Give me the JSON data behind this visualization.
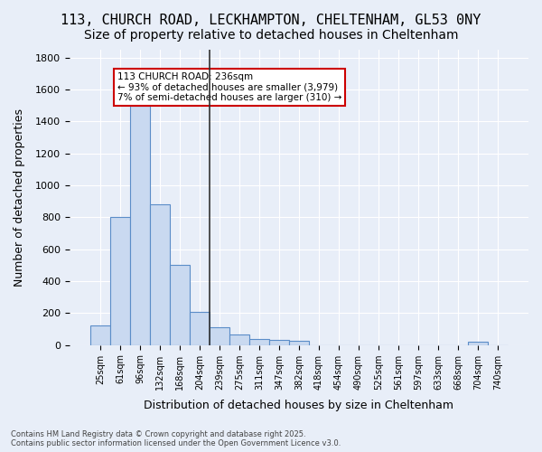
{
  "title_line1": "113, CHURCH ROAD, LECKHAMPTON, CHELTENHAM, GL53 0NY",
  "title_line2": "Size of property relative to detached houses in Cheltenham",
  "xlabel": "Distribution of detached houses by size in Cheltenham",
  "ylabel": "Number of detached properties",
  "footer_line1": "Contains HM Land Registry data © Crown copyright and database right 2025.",
  "footer_line2": "Contains public sector information licensed under the Open Government Licence v3.0.",
  "categories": [
    "25sqm",
    "61sqm",
    "96sqm",
    "132sqm",
    "168sqm",
    "204sqm",
    "239sqm",
    "275sqm",
    "311sqm",
    "347sqm",
    "382sqm",
    "418sqm",
    "454sqm",
    "490sqm",
    "525sqm",
    "561sqm",
    "597sqm",
    "633sqm",
    "668sqm",
    "704sqm",
    "740sqm"
  ],
  "values": [
    120,
    800,
    1500,
    880,
    500,
    210,
    110,
    65,
    40,
    30,
    25,
    0,
    0,
    0,
    0,
    0,
    0,
    0,
    0,
    20,
    0
  ],
  "bar_color": "#c9d9f0",
  "bar_edge_color": "#5b8dc8",
  "highlight_line_color": "#333333",
  "annotation_box_text": "113 CHURCH ROAD: 236sqm\n← 93% of detached houses are smaller (3,979)\n7% of semi-detached houses are larger (310) →",
  "annotation_box_edge_color": "#cc0000",
  "ylim": [
    0,
    1850
  ],
  "yticks": [
    0,
    200,
    400,
    600,
    800,
    1000,
    1200,
    1400,
    1600,
    1800
  ],
  "bg_color": "#e8eef8",
  "plot_bg_color": "#e8eef8",
  "grid_color": "#ffffff",
  "title_fontsize": 11,
  "subtitle_fontsize": 10
}
